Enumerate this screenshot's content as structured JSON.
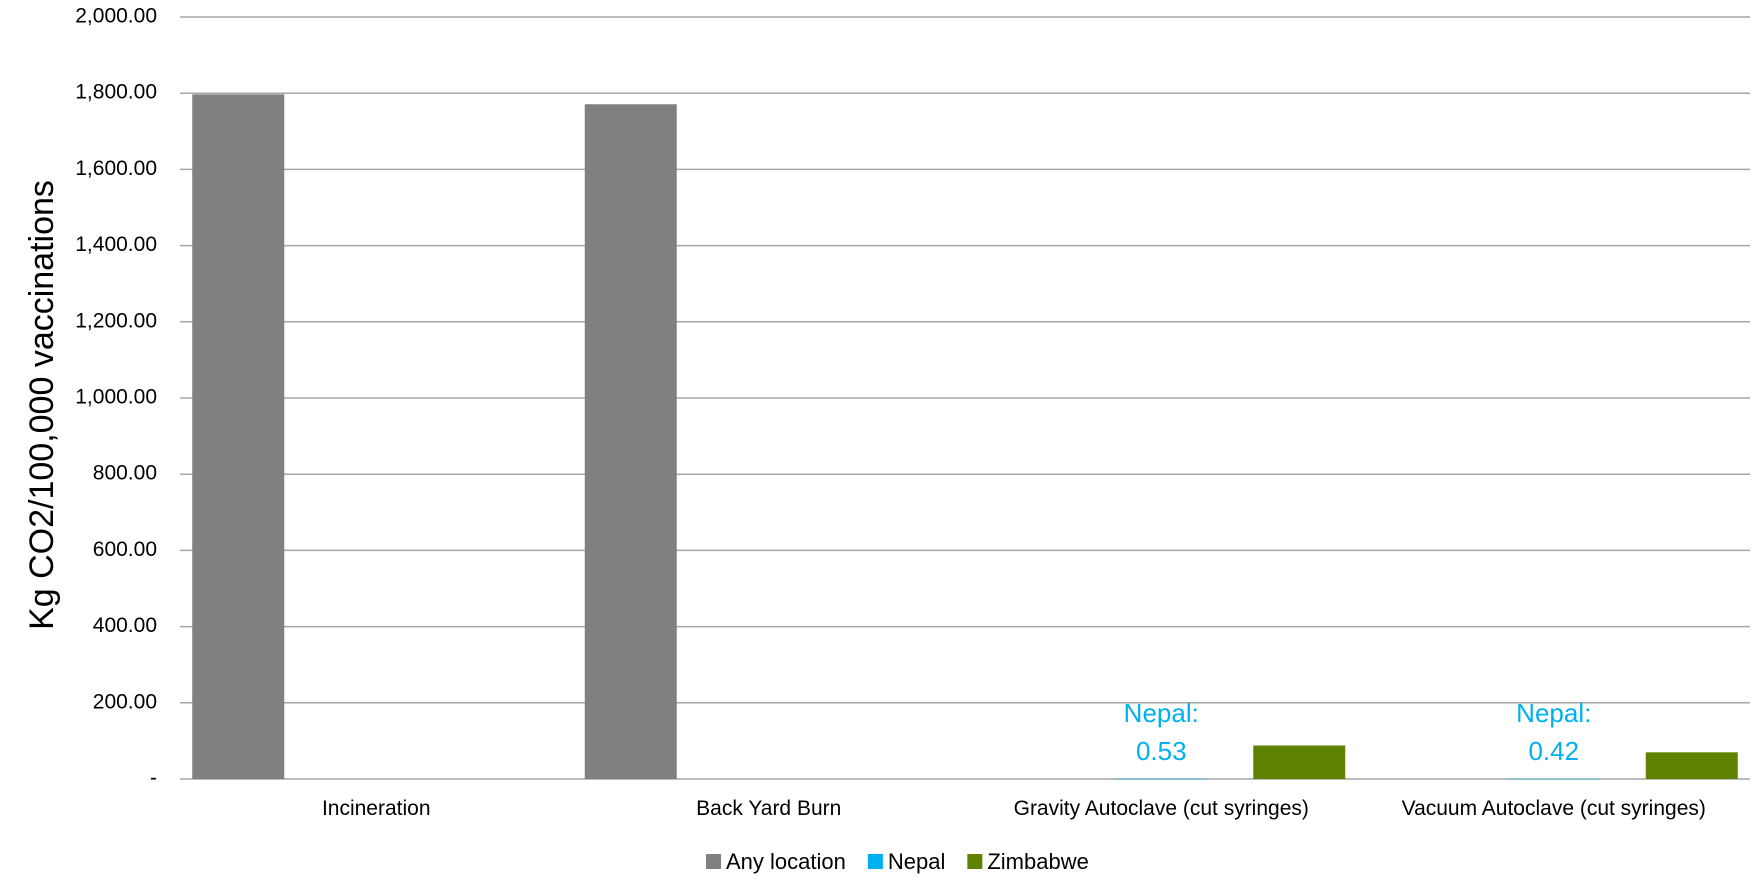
{
  "chart_data": {
    "type": "bar",
    "title": "",
    "xlabel": "",
    "ylabel": "Kg CO2/100,000 vaccinations",
    "ylim": [
      0,
      2000
    ],
    "y_ticks": [
      {
        "value": 0,
        "label": "-"
      },
      {
        "value": 200,
        "label": "200.00"
      },
      {
        "value": 400,
        "label": "400.00"
      },
      {
        "value": 600,
        "label": "600.00"
      },
      {
        "value": 800,
        "label": "800.00"
      },
      {
        "value": 1000,
        "label": "1,000.00"
      },
      {
        "value": 1200,
        "label": "1,200.00"
      },
      {
        "value": 1400,
        "label": "1,400.00"
      },
      {
        "value": 1600,
        "label": "1,600.00"
      },
      {
        "value": 1800,
        "label": "1,800.00"
      },
      {
        "value": 2000,
        "label": "2,000.00"
      }
    ],
    "grid": true,
    "legend_position": "bottom",
    "categories": [
      "Incineration",
      "Back Yard Burn",
      "Gravity Autoclave (cut syringes)",
      "Vacuum Autoclave (cut syringes)"
    ],
    "series": [
      {
        "name": "Any location",
        "color": "#808080",
        "values": [
          1797,
          1771,
          null,
          null
        ]
      },
      {
        "name": "Nepal",
        "color": "#00b0f0",
        "values": [
          null,
          null,
          0.53,
          0.42
        ]
      },
      {
        "name": "Zimbabwe",
        "color": "#5e8200",
        "values": [
          null,
          null,
          88,
          70
        ]
      }
    ],
    "annotations": [
      {
        "category_index": 2,
        "lines": [
          "Nepal:",
          "0.53"
        ],
        "color": "#00b0f0"
      },
      {
        "category_index": 3,
        "lines": [
          "Nepal:",
          "0.42"
        ],
        "color": "#00b0f0"
      }
    ]
  }
}
